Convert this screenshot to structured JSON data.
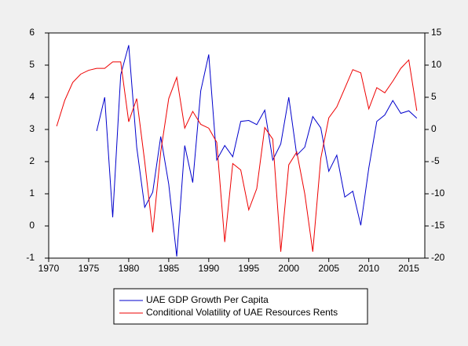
{
  "chart_data": {
    "type": "line",
    "x": [
      1971,
      1972,
      1973,
      1974,
      1975,
      1976,
      1977,
      1978,
      1979,
      1980,
      1981,
      1982,
      1983,
      1984,
      1985,
      1986,
      1987,
      1988,
      1989,
      1990,
      1991,
      1992,
      1993,
      1994,
      1995,
      1996,
      1997,
      1998,
      1999,
      2000,
      2001,
      2002,
      2003,
      2004,
      2005,
      2006,
      2007,
      2008,
      2009,
      2010,
      2011,
      2012,
      2013,
      2014,
      2015,
      2016
    ],
    "series": [
      {
        "name": "UAE GDP Growth Per Capita",
        "color": "#0000cc",
        "axis": "y",
        "values": [
          null,
          null,
          null,
          null,
          null,
          2.95,
          4.0,
          0.27,
          4.7,
          5.62,
          2.45,
          0.58,
          1.05,
          2.78,
          1.3,
          -0.95,
          2.5,
          1.35,
          4.2,
          5.33,
          2.05,
          2.5,
          2.15,
          3.25,
          3.28,
          3.15,
          3.6,
          2.05,
          2.55,
          4.0,
          2.2,
          2.45,
          3.4,
          3.05,
          1.7,
          2.2,
          0.9,
          1.08,
          0.02,
          1.8,
          3.25,
          3.45,
          3.9,
          3.5,
          3.58,
          3.35
        ]
      },
      {
        "name": "Conditional Volatility of UAE Resources Rents",
        "color": "#ee0000",
        "axis": "y2",
        "values": [
          0.5,
          4.5,
          7.3,
          8.6,
          9.2,
          9.5,
          9.5,
          10.5,
          10.5,
          1.2,
          4.8,
          -5,
          -16,
          -3.5,
          4.8,
          8.1,
          0.2,
          2.8,
          0.8,
          0.2,
          -2,
          -17.5,
          -5.3,
          -6.3,
          -12.5,
          -9.2,
          0.3,
          -1.5,
          -19,
          -5.5,
          -3.5,
          -10,
          -19,
          -4.5,
          1.8,
          3.5,
          6.4,
          9.3,
          8.8,
          3.2,
          6.5,
          5.7,
          7.5,
          9.5,
          10.8,
          2.9
        ]
      }
    ],
    "xlim": [
      1970,
      2017
    ],
    "xticks": [
      1970,
      1975,
      1980,
      1985,
      1990,
      1995,
      2000,
      2005,
      2010,
      2015
    ],
    "ylim": [
      -1,
      6
    ],
    "yticks": [
      -1,
      0,
      1,
      2,
      3,
      4,
      5,
      6
    ],
    "y2lim": [
      -20,
      15
    ],
    "y2ticks": [
      -20,
      -15,
      -10,
      -5,
      0,
      5,
      10,
      15
    ]
  }
}
